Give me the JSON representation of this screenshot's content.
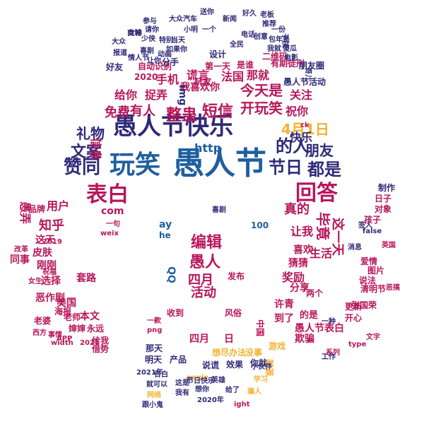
{
  "words": [
    {
      "text": "愚人节",
      "color": "#1f5fa0"
    },
    {
      "text": "愚人节快乐",
      "color": "#2e2a78"
    },
    {
      "text": "玩笑",
      "color": "#1f5fa0"
    },
    {
      "text": "4月1日",
      "color": "#f2b233"
    },
    {
      "text": "表白",
      "color": "#b8165a"
    },
    {
      "text": "回答",
      "color": "#b8165a"
    },
    {
      "text": "赞同",
      "color": "#2e2a78"
    },
    {
      "text": "节日",
      "color": "#2e2a78"
    },
    {
      "text": "都是",
      "color": "#2e2a78"
    },
    {
      "text": "的人",
      "color": "#2e2a78"
    },
    {
      "text": "朋友",
      "color": "#2e2a78"
    },
    {
      "text": "快乐",
      "color": "#2e2a78"
    },
    {
      "text": "文案",
      "color": "#2e2a78"
    },
    {
      "text": "礼物",
      "color": "#2e2a78"
    },
    {
      "text": "整蛊",
      "color": "#b8165a"
    },
    {
      "text": "短信",
      "color": "#b8165a"
    },
    {
      "text": "开玩笑",
      "color": "#b8165a"
    },
    {
      "text": "免费",
      "color": "#b8165a"
    },
    {
      "text": "有人",
      "color": "#b8165a"
    },
    {
      "text": "祝你",
      "color": "#b8165a"
    },
    {
      "text": "今天是",
      "color": "#b8165a"
    },
    {
      "text": "关注",
      "color": "#b8165a"
    },
    {
      "text": "捉弄",
      "color": "#b8165a"
    },
    {
      "text": "给你",
      "color": "#b8165a"
    },
    {
      "text": "我喜欢你",
      "color": "#b8165a"
    },
    {
      "text": "手机",
      "color": "#b8165a"
    },
    {
      "text": "谎言",
      "color": "#b8165a"
    },
    {
      "text": "法国",
      "color": "#b8165a"
    },
    {
      "text": "那就",
      "color": "#b8165a"
    },
    {
      "text": "愚弄",
      "color": "#b8165a"
    },
    {
      "text": "用户",
      "color": "#b8165a"
    },
    {
      "text": "品牌",
      "color": "#b8165a"
    },
    {
      "text": "知乎",
      "color": "#b8165a"
    },
    {
      "text": "com",
      "color": "#b8165a"
    },
    {
      "text": "编辑",
      "color": "#b8165a"
    },
    {
      "text": "愚人",
      "color": "#b8165a"
    },
    {
      "text": "四月",
      "color": "#b8165a"
    },
    {
      "text": "活动",
      "color": "#b8165a"
    },
    {
      "text": "真的",
      "color": "#b8165a"
    },
    {
      "text": "毕竟",
      "color": "#b8165a"
    },
    {
      "text": "这一天",
      "color": "#b8165a"
    },
    {
      "text": "让我",
      "color": "#b8165a"
    },
    {
      "text": "喜欢",
      "color": "#b8165a"
    },
    {
      "text": "生活",
      "color": "#b8165a"
    },
    {
      "text": "猜猜",
      "color": "#b8165a"
    },
    {
      "text": "奖励",
      "color": "#b8165a"
    },
    {
      "text": "分享",
      "color": "#b8165a"
    },
    {
      "text": "许青",
      "color": "#b8165a"
    },
    {
      "text": "到了",
      "color": "#b8165a"
    },
    {
      "text": "的是",
      "color": "#b8165a"
    },
    {
      "text": "开心",
      "color": "#b8165a"
    },
    {
      "text": "愚人节表白",
      "color": "#b8165a"
    },
    {
      "text": "欺骗",
      "color": "#b8165a"
    },
    {
      "text": "这天",
      "color": "#b8165a"
    },
    {
      "text": "皮肤",
      "color": "#b8165a"
    },
    {
      "text": "同事",
      "color": "#b8165a"
    },
    {
      "text": "刚刚",
      "color": "#b8165a"
    },
    {
      "text": "选择",
      "color": "#b8165a"
    },
    {
      "text": "套路",
      "color": "#b8165a"
    },
    {
      "text": "恶作剧",
      "color": "#b8165a"
    },
    {
      "text": "美国",
      "color": "#b8165a"
    },
    {
      "text": "海报",
      "color": "#b8165a"
    },
    {
      "text": "老婆",
      "color": "#b8165a"
    },
    {
      "text": "老师",
      "color": "#b8165a"
    },
    {
      "text": "本文",
      "color": "#b8165a"
    },
    {
      "text": "婶婶",
      "color": "#b8165a"
    },
    {
      "text": "永远",
      "color": "#b8165a"
    },
    {
      "text": "给我",
      "color": "#b8165a"
    },
    {
      "text": "借势",
      "color": "#b8165a"
    },
    {
      "text": "收到",
      "color": "#b8165a"
    },
    {
      "text": "风俗",
      "color": "#b8165a"
    },
    {
      "text": "四月",
      "color": "#b8165a"
    },
    {
      "text": "日",
      "color": "#b8165a"
    },
    {
      "text": "那天",
      "color": "#2e2a78"
    },
    {
      "text": "明天",
      "color": "#2e2a78"
    },
    {
      "text": "产品",
      "color": "#2e2a78"
    },
    {
      "text": "说谎",
      "color": "#2e2a78"
    },
    {
      "text": "效果",
      "color": "#2e2a78"
    },
    {
      "text": "你就",
      "color": "#2e2a78"
    },
    {
      "text": "起源",
      "color": "#f2b233"
    },
    {
      "text": "游戏",
      "color": "#f2b233"
    },
    {
      "text": "没事",
      "color": "#f2b233"
    },
    {
      "text": "想尽办法",
      "color": "#f2b233"
    },
    {
      "text": "发布",
      "color": "#b8165a"
    },
    {
      "text": "2020",
      "color": "#b8165a"
    },
    {
      "text": "自动识别",
      "color": "#b8165a"
    },
    {
      "text": "玩家",
      "color": "#b8165a"
    },
    {
      "text": "第一天",
      "color": "#b8165a"
    },
    {
      "text": "是谁",
      "color": "#b8165a"
    },
    {
      "text": "有期徒刑",
      "color": "#b8165a"
    },
    {
      "text": "二维码",
      "color": "#b8165a"
    },
    {
      "text": "愚人节活动",
      "color": "#2e2a78"
    },
    {
      "text": "设计",
      "color": "#2e2a78"
    },
    {
      "text": "全民",
      "color": "#2e2a78"
    },
    {
      "text": "创意",
      "color": "#2e2a78"
    },
    {
      "text": "电话",
      "color": "#2e2a78"
    },
    {
      "text": "小明",
      "color": "#2e2a78"
    },
    {
      "text": "一个",
      "color": "#2e2a78"
    },
    {
      "text": "一份",
      "color": "#2e2a78"
    },
    {
      "text": "子孩",
      "color": "#2e2a78"
    },
    {
      "text": "新闻",
      "color": "#2e2a78"
    },
    {
      "text": "大众汽车",
      "color": "#2e2a78"
    },
    {
      "text": "请你",
      "color": "#2e2a78"
    },
    {
      "text": "少侠",
      "color": "#2e2a78"
    },
    {
      "text": "特别",
      "color": "#2e2a78"
    },
    {
      "text": "当天",
      "color": "#2e2a78"
    },
    {
      "text": "大众",
      "color": "#2e2a78"
    },
    {
      "text": "商城",
      "color": "#2e2a78"
    },
    {
      "text": "动画",
      "color": "#2e2a78"
    },
    {
      "text": "喜剧",
      "color": "#2e2a78"
    },
    {
      "text": "如果你",
      "color": "#2e2a78"
    },
    {
      "text": "报道",
      "color": "#2e2a78"
    },
    {
      "text": "好友",
      "color": "#2e2a78"
    },
    {
      "text": "情人节",
      "color": "#2e2a78"
    },
    {
      "text": "让你",
      "color": "#2e2a78"
    },
    {
      "text": "分手",
      "color": "#2e2a78"
    },
    {
      "text": "我就",
      "color": "#2e2a78"
    },
    {
      "text": "傻瓜",
      "color": "#2e2a78"
    },
    {
      "text": "电影",
      "color": "#2e2a78"
    },
    {
      "text": "朋友圈",
      "color": "#2e2a78"
    },
    {
      "text": "哥儿",
      "color": "#2e2a78"
    },
    {
      "text": "老板",
      "color": "#2e2a78"
    },
    {
      "text": "好久",
      "color": "#2e2a78"
    },
    {
      "text": "送你",
      "color": "#2e2a78"
    },
    {
      "text": "推荐",
      "color": "#2e2a78"
    },
    {
      "text": "制作",
      "color": "#2e2a78"
    },
    {
      "text": "日子",
      "color": "#b8165a"
    },
    {
      "text": "对象",
      "color": "#b8165a"
    },
    {
      "text": "孩子",
      "color": "#b8165a"
    },
    {
      "text": "英国",
      "color": "#b8165a"
    },
    {
      "text": "图片",
      "color": "#b8165a"
    },
    {
      "text": "说法",
      "color": "#b8165a"
    },
    {
      "text": "清明节",
      "color": "#b8165a"
    },
    {
      "text": "爱情",
      "color": "#b8165a"
    },
    {
      "text": "恶搞",
      "color": "#b8165a"
    },
    {
      "text": "两个",
      "color": "#b8165a"
    },
    {
      "text": "更新",
      "color": "#b8165a"
    },
    {
      "text": "张国荣",
      "color": "#b8165a"
    },
    {
      "text": "文字",
      "color": "#b8165a"
    },
    {
      "text": "系列",
      "color": "#b8165a"
    },
    {
      "text": "西方",
      "color": "#b8165a"
    },
    {
      "text": "事情",
      "color": "#b8165a"
    },
    {
      "text": "女生",
      "color": "#b8165a"
    },
    {
      "text": "改革",
      "color": "#b8165a"
    },
    {
      "text": "祝福",
      "color": "#b8165a"
    },
    {
      "text": "2019",
      "color": "#b8165a"
    },
    {
      "text": "2021",
      "color": "#b8165a"
    },
    {
      "text": "一款",
      "color": "#b8165a"
    },
    {
      "text": "一句",
      "color": "#b8165a"
    },
    {
      "text": "中国",
      "color": "#b8165a"
    },
    {
      "text": "信息",
      "color": "#b8165a"
    },
    {
      "text": "http",
      "color": "#1f5fa0"
    },
    {
      "text": "ay",
      "color": "#1f5fa0"
    },
    {
      "text": "he",
      "color": "#1f5fa0"
    },
    {
      "text": "QQ",
      "color": "#1f5fa0"
    },
    {
      "text": "100",
      "color": "#1f5fa0"
    },
    {
      "text": "png",
      "color": "#b8165a"
    },
    {
      "text": "weix",
      "color": "#b8165a"
    },
    {
      "text": "ck",
      "color": "#b8165a"
    },
    {
      "text": "img",
      "color": "#2e2a78"
    },
    {
      "text": "false",
      "color": "#2e2a78"
    },
    {
      "text": "width",
      "color": "#b8165a"
    },
    {
      "text": "APP",
      "color": "#b8165a"
    },
    {
      "text": "type",
      "color": "#b8165a"
    },
    {
      "text": "ight",
      "color": "#b8165a"
    },
    {
      "text": "oogle",
      "color": "#f2b233"
    },
    {
      "text": "2020年",
      "color": "#2e2a78"
    },
    {
      "text": "2021年",
      "color": "#2e2a78"
    },
    {
      "text": "告白",
      "color": "#2e2a78"
    },
    {
      "text": "就可以",
      "color": "#2e2a78"
    },
    {
      "text": "这是",
      "color": "#2e2a78"
    },
    {
      "text": "我有",
      "color": "#2e2a78"
    },
    {
      "text": "想你",
      "color": "#2e2a78"
    },
    {
      "text": "英雄",
      "color": "#2e2a78"
    },
    {
      "text": "给了",
      "color": "#2e2a78"
    },
    {
      "text": "小伙伴",
      "color": "#2e2a78"
    },
    {
      "text": "学习",
      "color": "#f2b233"
    },
    {
      "text": "骗人",
      "color": "#f2b233"
    },
    {
      "text": "网络",
      "color": "#f2b233"
    },
    {
      "text": "跟小鬼",
      "color": "#2e2a78"
    },
    {
      "text": "节日快乐",
      "color": "#2e2a78"
    },
    {
      "text": "工作",
      "color": "#2e2a78"
    },
    {
      "text": "一种",
      "color": "#2e2a78"
    },
    {
      "text": "消息",
      "color": "#2e2a78"
    },
    {
      "text": "签人",
      "color": "#2e2a78"
    },
    {
      "text": "包年是",
      "color": "#2e2a78"
    },
    {
      "text": "参与",
      "color": "#2e2a78"
    },
    {
      "text": "女神",
      "color": "#2e2a78"
    },
    {
      "text": "喜剧",
      "color": "#2e2a78"
    }
  ]
}
